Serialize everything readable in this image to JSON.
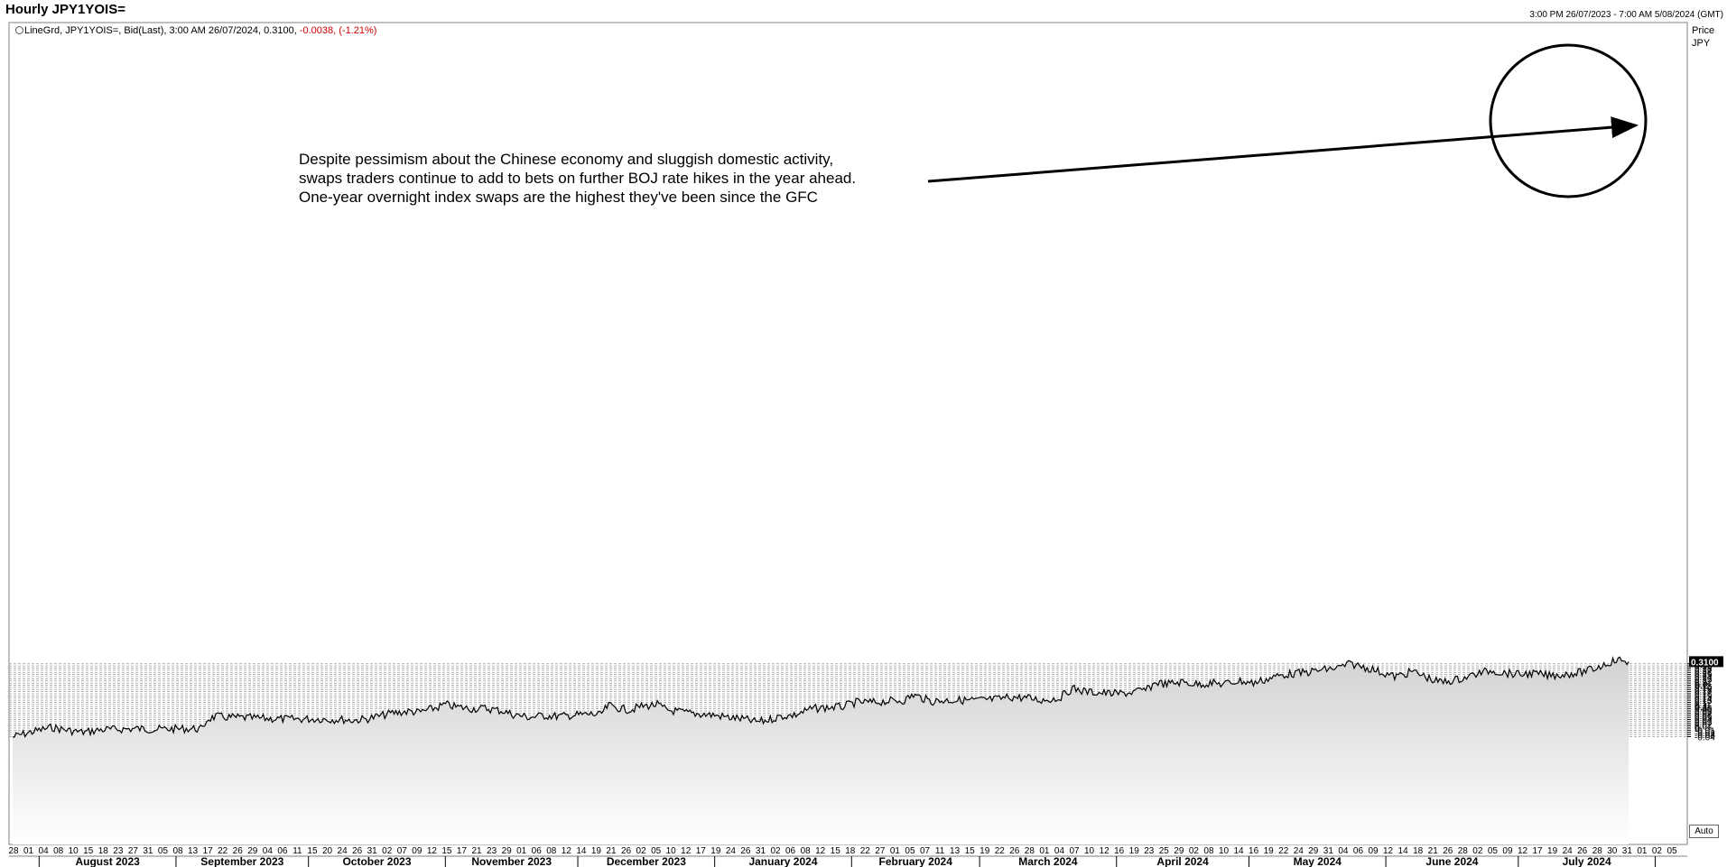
{
  "header": {
    "title": "Hourly JPY1YOIS=",
    "date_range": "3:00 PM 26/07/2023 - 7:00 AM 5/08/2024 (GMT)"
  },
  "legend": {
    "text": "LineGrd, JPY1YOIS=, Bid(Last), 3:00 AM 26/07/2024, 0.3100,",
    "change": "-0.0038, (-1.21%)"
  },
  "axis": {
    "price_label": "Price",
    "currency_label": "JPY",
    "last_value_tag": "0.3100",
    "auto_button": "Auto"
  },
  "annotation": {
    "lines": [
      "Despite pessimism about the Chinese economy and sluggish domestic activity,",
      "swaps traders continue to add to bets on further BOJ rate hikes in the year ahead.",
      "One-year overnight index swaps are the highest they've been since the GFC"
    ]
  },
  "colors": {
    "line": "#000000",
    "area_top": "#d2d2d2",
    "area_bottom": "#ffffff",
    "grid": "#9a9a9a",
    "change_text": "#d40000"
  },
  "chart_data": {
    "type": "area",
    "title": "Hourly JPY1YOIS=",
    "ylabel": "Price JPY",
    "ylim": [
      -0.045,
      0.315
    ],
    "grid": true,
    "y_ticks": [
      "0.3",
      "0.29",
      "0.28",
      "0.27",
      "0.26",
      "0.25",
      "0.24",
      "0.23",
      "0.22",
      "0.21",
      "0.2",
      "0.19",
      "0.18",
      "0.17",
      "0.16",
      "0.15",
      "0.14",
      "0.13",
      "0.12",
      "0.11",
      "0.1",
      "0.09",
      "0.08",
      "0.07",
      "0.06",
      "0.05",
      "0.04",
      "0.03",
      "0.02",
      "0.01",
      "0",
      "-0.01",
      "-0.02",
      "-0.03",
      "-0.04"
    ],
    "x_day_ticks": [
      "28",
      "01",
      "04",
      "08",
      "10",
      "15",
      "18",
      "23",
      "27",
      "31",
      "05",
      "08",
      "13",
      "17",
      "22",
      "26",
      "29",
      "04",
      "06",
      "11",
      "15",
      "20",
      "24",
      "26",
      "31",
      "02",
      "07",
      "09",
      "12",
      "15",
      "17",
      "21",
      "23",
      "29",
      "01",
      "06",
      "08",
      "12",
      "14",
      "19",
      "21",
      "26",
      "02",
      "05",
      "10",
      "12",
      "17",
      "19",
      "24",
      "26",
      "31",
      "02",
      "06",
      "08",
      "12",
      "15",
      "18",
      "22",
      "27",
      "01",
      "05",
      "07",
      "11",
      "13",
      "15",
      "19",
      "22",
      "26",
      "28",
      "01",
      "04",
      "07",
      "10",
      "12",
      "16",
      "19",
      "23",
      "25",
      "29",
      "02",
      "08",
      "10",
      "14",
      "16",
      "19",
      "22",
      "24",
      "29",
      "31",
      "04",
      "06",
      "09",
      "12",
      "14",
      "18",
      "21",
      "26",
      "28",
      "02",
      "05",
      "09",
      "12",
      "17",
      "19",
      "24",
      "26",
      "28",
      "30",
      "31",
      "01",
      "02",
      "05"
    ],
    "x_month_labels": [
      "August 2023",
      "September 2023",
      "October 2023",
      "November 2023",
      "December 2023",
      "January 2024",
      "February 2024",
      "March 2024",
      "April 2024",
      "May 2024",
      "June 2024",
      "July 2024"
    ],
    "series": [
      {
        "x": [
          "2023-07-26",
          "2023-07-28",
          "2023-08-01",
          "2023-08-04",
          "2023-08-08",
          "2023-08-11",
          "2023-08-15",
          "2023-08-18",
          "2023-08-23",
          "2023-08-27",
          "2023-08-31",
          "2023-09-05",
          "2023-09-07",
          "2023-09-08",
          "2023-09-10",
          "2023-09-13",
          "2023-09-17",
          "2023-09-22",
          "2023-09-26",
          "2023-09-29",
          "2023-10-04",
          "2023-10-06",
          "2023-10-09",
          "2023-10-11",
          "2023-10-14",
          "2023-10-17",
          "2023-10-20",
          "2023-10-24",
          "2023-10-26",
          "2023-10-30",
          "2023-11-01",
          "2023-11-03",
          "2023-11-07",
          "2023-11-10",
          "2023-11-14",
          "2023-11-16",
          "2023-11-20",
          "2023-11-23",
          "2023-11-27",
          "2023-11-30",
          "2023-12-04",
          "2023-12-06",
          "2023-12-08",
          "2023-12-11",
          "2023-12-13",
          "2023-12-15",
          "2023-12-19",
          "2023-12-21",
          "2023-12-26",
          "2024-01-01",
          "2024-01-04",
          "2024-01-08",
          "2024-01-10",
          "2024-01-12",
          "2024-01-16",
          "2024-01-19",
          "2024-01-23",
          "2024-01-26",
          "2024-01-30",
          "2024-02-02",
          "2024-02-06",
          "2024-02-09",
          "2024-02-13",
          "2024-02-15",
          "2024-02-19",
          "2024-02-23",
          "2024-02-27",
          "2024-03-01",
          "2024-03-05",
          "2024-03-08",
          "2024-03-12",
          "2024-03-15",
          "2024-03-19",
          "2024-03-22",
          "2024-03-25",
          "2024-03-28",
          "2024-04-01",
          "2024-04-04",
          "2024-04-08",
          "2024-04-10",
          "2024-04-12",
          "2024-04-16",
          "2024-04-19",
          "2024-04-23",
          "2024-04-25",
          "2024-04-29",
          "2024-05-02",
          "2024-05-07",
          "2024-05-09",
          "2024-05-14",
          "2024-05-17",
          "2024-05-21",
          "2024-05-24",
          "2024-05-29",
          "2024-05-31",
          "2024-06-03",
          "2024-06-05",
          "2024-06-07",
          "2024-06-10",
          "2024-06-12",
          "2024-06-14",
          "2024-06-18",
          "2024-06-21",
          "2024-06-25",
          "2024-06-27",
          "2024-07-01",
          "2024-07-04",
          "2024-07-08",
          "2024-07-11",
          "2024-07-15",
          "2024-07-18",
          "2024-07-22",
          "2024-07-24",
          "2024-07-26"
        ],
        "values": [
          -0.042,
          -0.03,
          -0.01,
          0.003,
          -0.012,
          -0.02,
          -0.008,
          -0.006,
          -0.003,
          -0.006,
          -0.004,
          -0.003,
          -0.005,
          0.04,
          0.054,
          0.05,
          0.048,
          0.044,
          0.042,
          0.042,
          0.043,
          0.04,
          0.04,
          0.036,
          0.042,
          0.055,
          0.07,
          0.078,
          0.073,
          0.095,
          0.11,
          0.1,
          0.09,
          0.092,
          0.08,
          0.065,
          0.05,
          0.058,
          0.055,
          0.06,
          0.065,
          0.06,
          0.105,
          0.09,
          0.085,
          0.1,
          0.11,
          0.085,
          0.07,
          0.06,
          0.05,
          0.04,
          0.03,
          0.032,
          0.055,
          0.06,
          0.09,
          0.095,
          0.1,
          0.12,
          0.12,
          0.125,
          0.13,
          0.155,
          0.125,
          0.13,
          0.13,
          0.13,
          0.135,
          0.145,
          0.14,
          0.13,
          0.14,
          0.185,
          0.17,
          0.165,
          0.16,
          0.165,
          0.18,
          0.215,
          0.205,
          0.215,
          0.205,
          0.21,
          0.205,
          0.22,
          0.21,
          0.24,
          0.25,
          0.26,
          0.27,
          0.28,
          0.3,
          0.275,
          0.26,
          0.24,
          0.25,
          0.265,
          0.24,
          0.22,
          0.215,
          0.23,
          0.25,
          0.27,
          0.26,
          0.25,
          0.255,
          0.245,
          0.25,
          0.26,
          0.275,
          0.31,
          0.318,
          0.31
        ]
      }
    ]
  }
}
